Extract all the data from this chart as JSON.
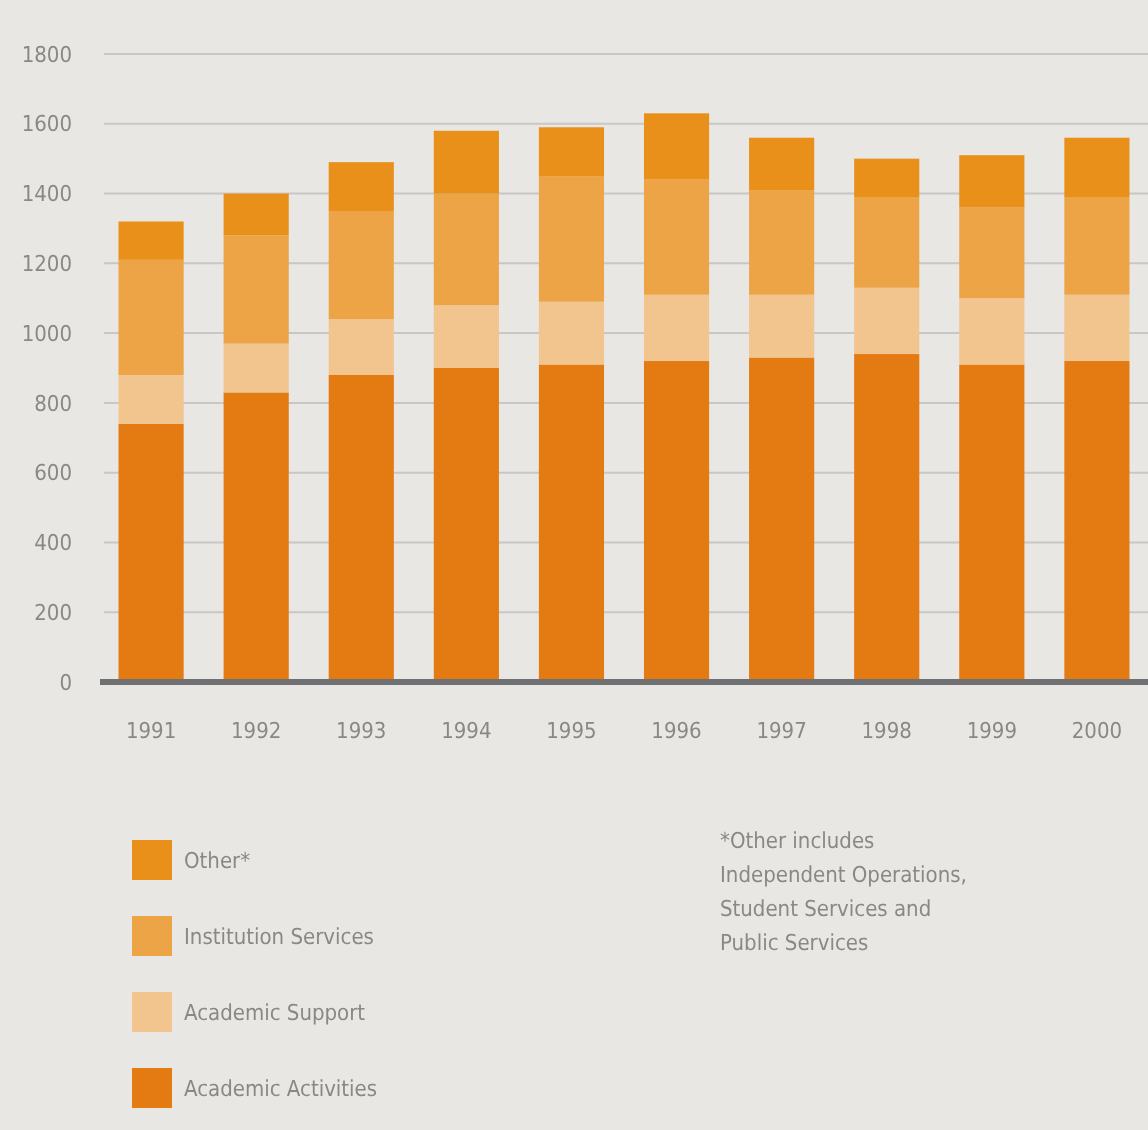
{
  "chart_data": {
    "type": "bar",
    "stacked": true,
    "categories": [
      "1991",
      "1992",
      "1993",
      "1994",
      "1995",
      "1996",
      "1997",
      "1998",
      "1999",
      "2000"
    ],
    "series": [
      {
        "name": "Academic Activities",
        "color": "#e37b12",
        "values": [
          740,
          830,
          880,
          900,
          910,
          920,
          930,
          940,
          910,
          920
        ]
      },
      {
        "name": "Academic Support",
        "color": "#f2c48e",
        "values": [
          140,
          140,
          160,
          180,
          180,
          190,
          180,
          190,
          190,
          190
        ]
      },
      {
        "name": "Institution Services",
        "color": "#eca446",
        "values": [
          330,
          310,
          310,
          320,
          360,
          330,
          300,
          260,
          260,
          280
        ]
      },
      {
        "name": "Other*",
        "color": "#e8901a",
        "values": [
          110,
          120,
          140,
          180,
          140,
          190,
          150,
          110,
          150,
          170
        ]
      }
    ],
    "ylim": [
      0,
      1800
    ],
    "yticks": [
      0,
      200,
      400,
      600,
      800,
      1000,
      1200,
      1400,
      1600,
      1800
    ],
    "grid": "y",
    "legend": "bottom",
    "annotations": [
      "*Other includes Independent Operations, Student Services and Public Services"
    ]
  }
}
